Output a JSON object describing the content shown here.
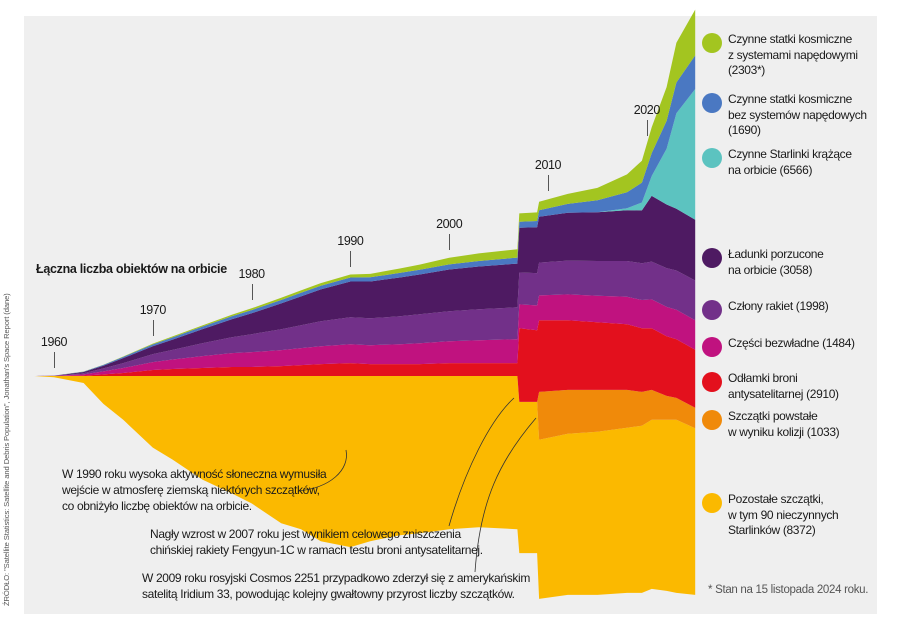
{
  "source_text": "ŹRÓDŁO: \"Satellite Statistics: Satellite and Debris Population\", Jonathan's Space Report (dane)",
  "footnote": "* Stan na 15 listopada 2024 roku.",
  "chart_data": {
    "type": "area",
    "title": "Łączna liczba obiektów na orbicie",
    "xlabel": "",
    "ylabel": "",
    "x_range": [
      1958,
      2024.9
    ],
    "year_ticks": [
      "1960",
      "1970",
      "1980",
      "1990",
      "2000",
      "2010",
      "2020"
    ],
    "legend_placement": "right",
    "grid": false,
    "stack_order_bottom_to_top": [
      "other_debris",
      "collision_debris",
      "asat_debris",
      "inert_parts",
      "rocket_stages",
      "abandoned_payloads",
      "starlink",
      "active_no_propulsion",
      "active_propulsion"
    ],
    "x": [
      1958,
      1960,
      1963,
      1965,
      1967,
      1970,
      1972,
      1975,
      1978,
      1980,
      1983,
      1985,
      1987,
      1990,
      1992,
      1995,
      1997,
      2000,
      2003,
      2006.9,
      2007.1,
      2008.9,
      2009.1,
      2012,
      2015,
      2018,
      2019.5,
      2020.5,
      2022,
      2023,
      2024.9
    ],
    "below_axis": [
      0,
      60,
      350,
      1400,
      2200,
      3600,
      4200,
      5200,
      5900,
      6400,
      7400,
      7700,
      8300,
      8600,
      8300,
      8000,
      7900,
      7700,
      7600,
      7700,
      8900,
      8900,
      11200,
      11000,
      11000,
      10900,
      10900,
      10700,
      10800,
      10900,
      11000
    ],
    "series": [
      {
        "key": "active_propulsion",
        "name": "Czynne statki kosmiczne z systemami napędowymi",
        "count_label": "(2303*)",
        "color": "#a3c520",
        "values": [
          0,
          0,
          5,
          10,
          20,
          40,
          50,
          60,
          80,
          90,
          110,
          120,
          130,
          150,
          170,
          220,
          260,
          330,
          380,
          420,
          420,
          430,
          430,
          500,
          620,
          900,
          1100,
          1300,
          1700,
          2000,
          2303
        ]
      },
      {
        "key": "active_no_propulsion",
        "name": "Czynne statki kosmiczne bez systemów napędowych",
        "count_label": "(1690)",
        "color": "#4a78c2",
        "values": [
          0,
          0,
          20,
          40,
          60,
          90,
          110,
          130,
          150,
          160,
          170,
          180,
          190,
          200,
          210,
          230,
          240,
          260,
          280,
          300,
          300,
          320,
          330,
          450,
          600,
          800,
          1000,
          1150,
          1400,
          1550,
          1690
        ]
      },
      {
        "key": "starlink",
        "name": "Czynne Starlinki krążące na orbicie",
        "count_label": "(6566)",
        "color": "#5cc3c0",
        "values": [
          0,
          0,
          0,
          0,
          0,
          0,
          0,
          0,
          0,
          0,
          0,
          0,
          0,
          0,
          0,
          0,
          0,
          0,
          0,
          0,
          0,
          0,
          0,
          0,
          0,
          100,
          400,
          1000,
          2800,
          4800,
          6566
        ]
      },
      {
        "key": "abandoned_payloads",
        "name": "Ładunki porzucone na orbicie",
        "count_label": "(3058)",
        "color": "#4e1a62",
        "values": [
          0,
          5,
          60,
          140,
          250,
          400,
          520,
          700,
          900,
          1050,
          1300,
          1450,
          1600,
          1800,
          1850,
          1950,
          2000,
          2100,
          2150,
          2200,
          2250,
          2300,
          2300,
          2400,
          2450,
          2550,
          2650,
          3300,
          3200,
          3100,
          3058
        ]
      },
      {
        "key": "rocket_stages",
        "name": "Człony rakiet",
        "count_label": "(1998)",
        "color": "#723089",
        "values": [
          0,
          10,
          60,
          150,
          250,
          400,
          480,
          650,
          800,
          900,
          1050,
          1150,
          1250,
          1350,
          1350,
          1400,
          1450,
          1500,
          1550,
          1600,
          1600,
          1620,
          1650,
          1700,
          1750,
          1800,
          1850,
          1900,
          1950,
          1970,
          1998
        ]
      },
      {
        "key": "inert_parts",
        "name": "Części bezwładne",
        "count_label": "(1484)",
        "color": "#c0127f",
        "values": [
          0,
          5,
          60,
          150,
          250,
          400,
          480,
          600,
          700,
          750,
          800,
          850,
          900,
          950,
          950,
          1000,
          1050,
          1100,
          1150,
          1200,
          1200,
          1250,
          1250,
          1300,
          1330,
          1380,
          1420,
          1450,
          1470,
          1480,
          1484
        ]
      },
      {
        "key": "asat_debris",
        "name": "Odłamki broni antysatelitarnej",
        "count_label": "(2910)",
        "color": "#e3101d",
        "values": [
          0,
          0,
          20,
          80,
          150,
          300,
          350,
          400,
          450,
          450,
          500,
          550,
          600,
          650,
          600,
          600,
          600,
          650,
          650,
          650,
          3700,
          3600,
          3600,
          3500,
          3400,
          3300,
          3200,
          3100,
          3000,
          2950,
          2910
        ]
      },
      {
        "key": "collision_debris",
        "name": "Szczątki powstałe w wyniku kolizji",
        "count_label": "(1033)",
        "color": "#f08a0a",
        "values": [
          0,
          0,
          0,
          0,
          0,
          0,
          0,
          0,
          0,
          0,
          0,
          0,
          0,
          0,
          0,
          0,
          0,
          0,
          0,
          0,
          0,
          0,
          2400,
          2200,
          2100,
          1900,
          1700,
          1500,
          1200,
          1100,
          1033
        ]
      },
      {
        "key": "other_debris",
        "name": "Pozostałe szczątki, w tym 90 nieczynnych Starlinków",
        "count_label": "(8372)",
        "color": "#fbb900",
        "values": [
          0,
          60,
          350,
          1400,
          2200,
          3600,
          4200,
          5200,
          5900,
          6400,
          7400,
          7700,
          8300,
          8600,
          8300,
          8000,
          7900,
          7700,
          7600,
          7700,
          7600,
          7600,
          8000,
          8100,
          8200,
          8300,
          8400,
          8500,
          8600,
          8700,
          8372
        ]
      }
    ],
    "annotations": [
      {
        "key": "solar",
        "text": "W 1990 roku wysoka aktywność słoneczna wymusiła\nwejście w atmosferę ziemską niektórych szczątków,\nco obniżyło liczbę obiektów na orbicie."
      },
      {
        "key": "fengyun",
        "text": "Nagły wzrost w 2007 roku jest wynikiem celowego zniszczenia\nchińskiej rakiety Fengyun-1C w ramach testu broni antysatelitarnej."
      },
      {
        "key": "cosmos",
        "text": "W 2009 roku rosyjski Cosmos 2251 przypadkowo zderzył się z amerykańskim\nsatelitą Iridium 33, powodując kolejny gwałtowny przyrost liczby szczątków."
      }
    ]
  },
  "legend": [
    {
      "key": "active_propulsion",
      "label": "Czynne statki kosmiczne\nz systemami napędowymi\n(2303*)",
      "color": "#a3c520"
    },
    {
      "key": "active_no_propulsion",
      "label": "Czynne statki kosmiczne\nbez systemów napędowych\n(1690)",
      "color": "#4a78c2"
    },
    {
      "key": "starlink",
      "label": "Czynne Starlinki krążące\nna orbicie (6566)",
      "color": "#5cc3c0"
    },
    {
      "key": "abandoned_payloads",
      "label": "Ładunki porzucone\nna orbicie (3058)",
      "color": "#4e1a62"
    },
    {
      "key": "rocket_stages",
      "label": "Człony rakiet (1998)",
      "color": "#723089"
    },
    {
      "key": "inert_parts",
      "label": "Części bezwładne (1484)",
      "color": "#c0127f"
    },
    {
      "key": "asat_debris",
      "label": "Odłamki broni\nantysatelitarnej (2910)",
      "color": "#e3101d"
    },
    {
      "key": "collision_debris",
      "label": "Szczątki powstałe\nw wyniku kolizji (1033)",
      "color": "#f08a0a"
    },
    {
      "key": "other_debris",
      "label": "Pozostałe szczątki,\nw tym 90 nieczynnych\nStarlinków (8372)",
      "color": "#fbb900"
    }
  ]
}
